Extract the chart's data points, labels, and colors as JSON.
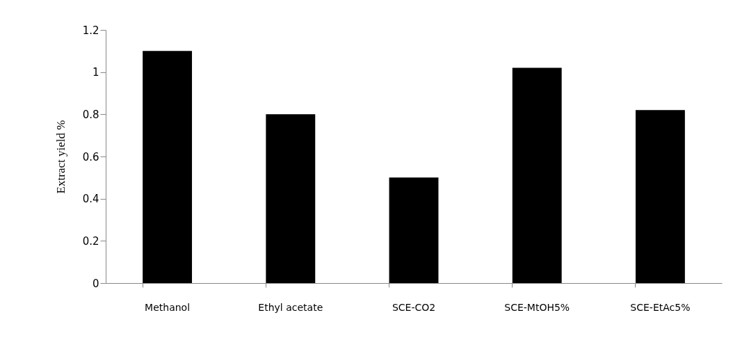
{
  "chart_data": {
    "type": "bar",
    "ylabel": "Extract yield %",
    "categories": [
      "Methanol",
      "Ethyl acetate",
      "SCE-CO2",
      "SCE-MtOH5%",
      "SCE-EtAc5%"
    ],
    "values": [
      1.1,
      0.8,
      0.5,
      1.02,
      0.82
    ],
    "color": "#000000",
    "ylim": [
      0,
      1.2
    ],
    "yticks": [
      0,
      0.2,
      0.4,
      0.6,
      0.8,
      1,
      1.2
    ],
    "grid": false
  }
}
